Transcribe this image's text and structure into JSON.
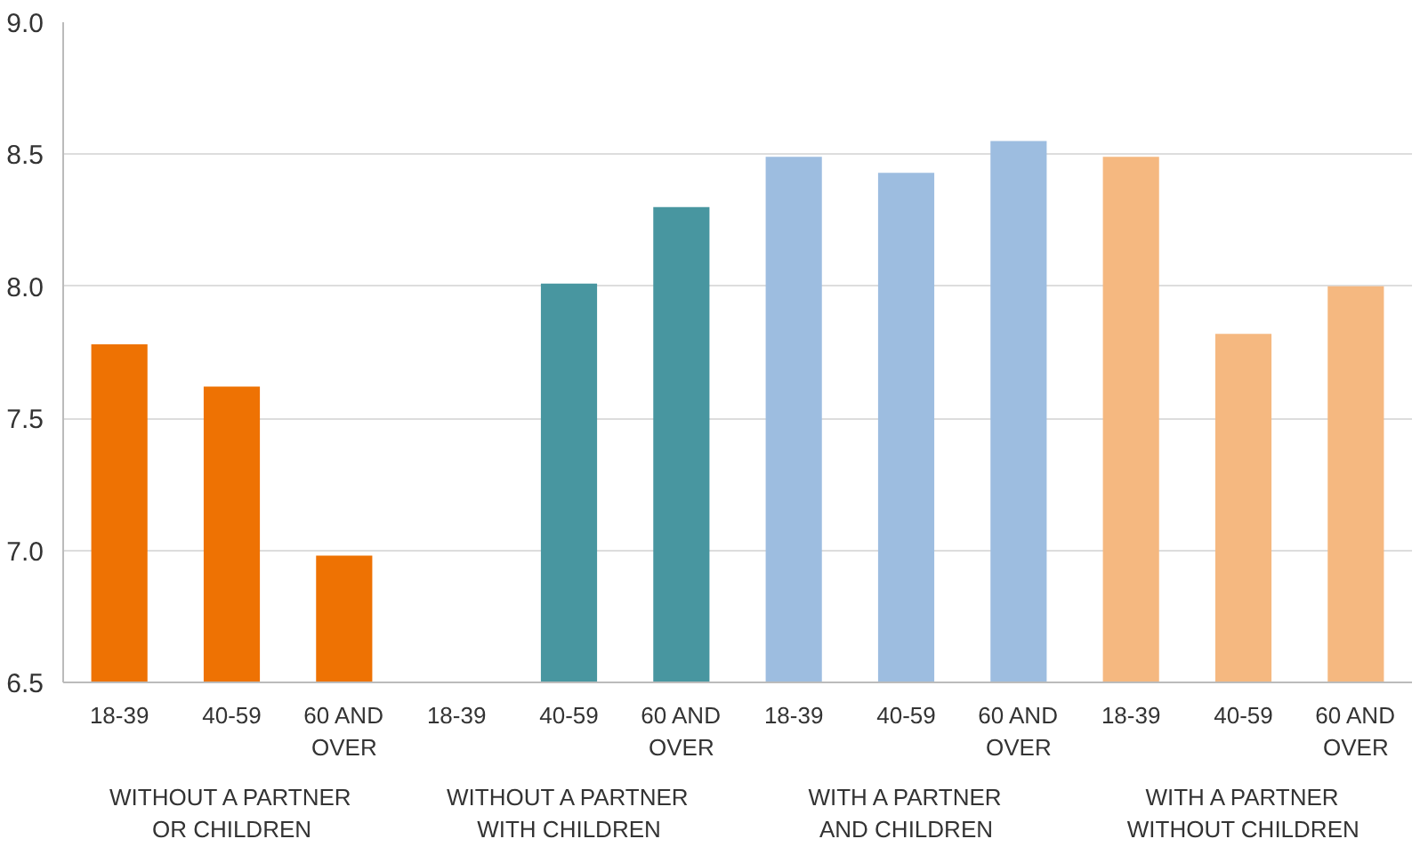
{
  "chart_data": {
    "type": "bar",
    "categories": [
      "18-39",
      "40-59",
      "60 AND\nOVER",
      "18-39",
      "40-59",
      "60 AND\nOVER",
      "18-39",
      "40-59",
      "60 AND\nOVER",
      "18-39",
      "40-59",
      "60 AND\nOVER"
    ],
    "values": [
      7.78,
      7.62,
      6.98,
      null,
      8.01,
      8.3,
      8.49,
      8.43,
      8.55,
      8.49,
      7.82,
      8.0
    ],
    "colors": [
      "#ee7203",
      "#ee7203",
      "#ee7203",
      "#4896a0",
      "#4896a0",
      "#4896a0",
      "#9dbde0",
      "#9dbde0",
      "#9dbde0",
      "#f5b880",
      "#f5b880",
      "#f5b880"
    ],
    "annotations": [
      "WITHOUT A PARTNER\nOR CHILDREN",
      "WITHOUT A PARTNER\nWITH CHILDREN",
      "WITH A PARTNER\nAND CHILDREN",
      "WITH A PARTNER\nWITHOUT CHILDREN"
    ],
    "ylim": [
      6.5,
      9.0
    ],
    "yticks": [
      {
        "value": 6.5,
        "label": "6.5"
      },
      {
        "value": 7,
        "label": "7.0"
      },
      {
        "value": 7.5,
        "label": "7.5"
      },
      {
        "value": 8,
        "label": "8.0"
      },
      {
        "value": 8.5,
        "label": "8.5"
      },
      {
        "value": 9,
        "label": "9.0"
      }
    ],
    "grid": "y"
  }
}
